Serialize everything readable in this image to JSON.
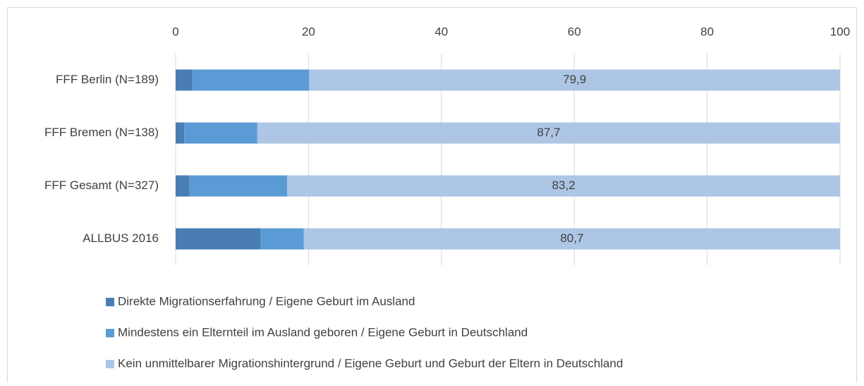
{
  "chart_data": {
    "type": "bar",
    "orientation": "horizontal",
    "stacked": true,
    "categories": [
      "FFF Berlin (N=189)",
      "FFF Bremen (N=138)",
      "FFF Gesamt (N=327)",
      "ALLBUS 2016"
    ],
    "series": [
      {
        "name": "Direkte Migrationserfahrung / Eigene Geburt im Ausland",
        "color": "#4a7eb3",
        "values": [
          2.5,
          1.3,
          2.1,
          12.8
        ]
      },
      {
        "name": "Mindestens ein Elternteil im Ausland geboren / Eigene Geburt in Deutschland",
        "color": "#5b9bd5",
        "values": [
          17.6,
          11.0,
          14.7,
          6.5
        ]
      },
      {
        "name": "Kein unmittelbarer Migrationshintergrund / Eigene Geburt und Geburt der Eltern in Deutschland",
        "color": "#adc6e6",
        "values": [
          79.9,
          87.7,
          83.2,
          80.7
        ],
        "value_labels": [
          "79,9",
          "87,7",
          "83,2",
          "80,7"
        ]
      }
    ],
    "xlim": [
      0,
      100
    ],
    "xticks": [
      0,
      20,
      40,
      60,
      80,
      100
    ],
    "grid": true,
    "legend": "bottom"
  }
}
